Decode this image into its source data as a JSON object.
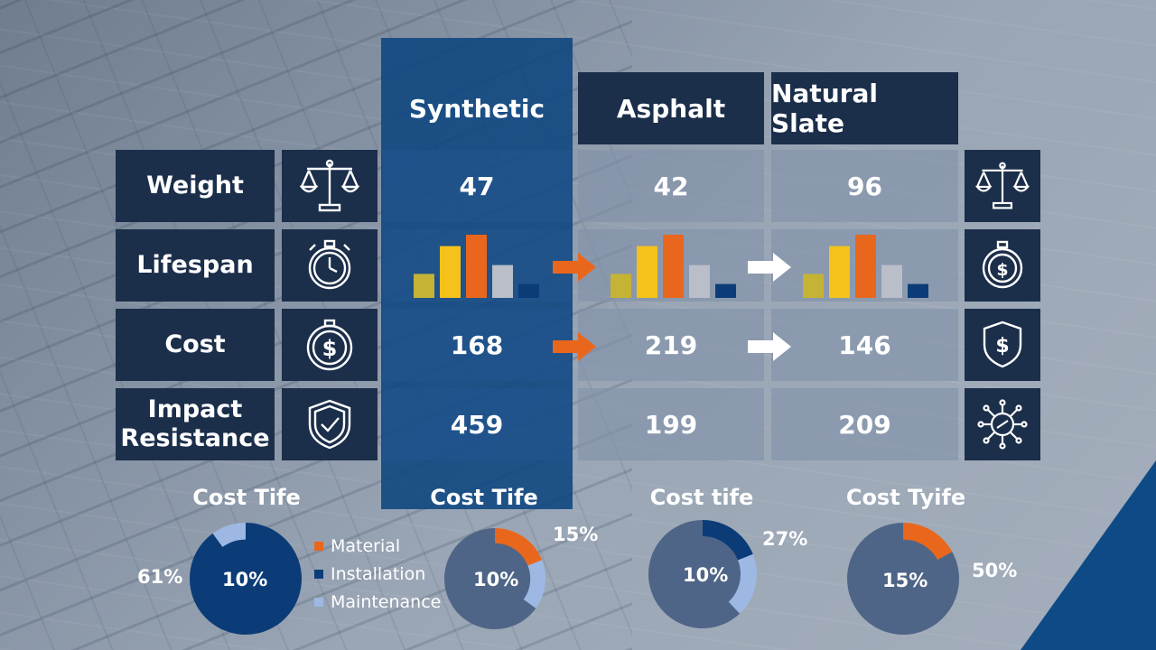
{
  "columns": [
    "Synthetic",
    "Asphalt",
    "Natural Slate"
  ],
  "rows": [
    {
      "label": "Weight",
      "icon": "scale-icon",
      "right_icon": "scale-icon",
      "values": [
        "47",
        "42",
        "96"
      ]
    },
    {
      "label": "Lifespan",
      "icon": "stopwatch-icon",
      "right_icon": "stopwatch-dollar-icon",
      "values": null
    },
    {
      "label": "Cost",
      "icon": "dollar-coin-icon",
      "right_icon": "dollar-shield-icon",
      "values": [
        "168",
        "219",
        "146"
      ]
    },
    {
      "label": "Impact Resistance",
      "label_line1": "Impact",
      "label_line2": "Resistance",
      "icon": "shield-check-icon",
      "right_icon": "virus-icon",
      "values": [
        "459",
        "199",
        "209"
      ]
    }
  ],
  "colors": {
    "header_bg": "#1b2e4a",
    "synthetic_col": "#0d467f",
    "orange": "#e8671d",
    "yellow": "#f4c21b",
    "olive": "#c4b335",
    "grey": "#b9bec8",
    "navy": "#0c3c78",
    "light_blue": "#9db8e2",
    "pie_slate": "#4f6587"
  },
  "legend": [
    {
      "label": "Material",
      "color": "#e8671d"
    },
    {
      "label": "Installation",
      "color": "#0c3c78"
    },
    {
      "label": "Maintenance",
      "color": "#9db8e2"
    }
  ],
  "chart_data": [
    {
      "type": "bar",
      "title": "",
      "groups": [
        "Synthetic",
        "Asphalt",
        "Natural Slate"
      ],
      "bar_colors": [
        "#c4b335",
        "#f4c21b",
        "#e8671d",
        "#b9bec8",
        "#0c3c78"
      ],
      "series": [
        {
          "values": [
            0.38,
            0.82,
            1.0,
            0.52,
            0.22
          ]
        },
        {
          "values": [
            0.38,
            0.82,
            1.0,
            0.52,
            0.22
          ]
        },
        {
          "values": [
            0.38,
            0.82,
            1.0,
            0.52,
            0.22
          ]
        }
      ]
    },
    {
      "type": "pie",
      "title": "Cost Tife",
      "center_label": "10%",
      "outer_label": "61%",
      "slices": [
        {
          "name": "Installation",
          "value": 90,
          "color": "#0c3c78"
        },
        {
          "name": "Maintenance",
          "value": 10,
          "color": "#9db8e2"
        }
      ]
    },
    {
      "type": "pie",
      "title": "Cost Tife",
      "center_label": "10%",
      "outer_label": "15%",
      "slices": [
        {
          "name": "Material",
          "value": 19,
          "color": "#e8671d"
        },
        {
          "name": "Maintenance",
          "value": 16,
          "color": "#9db8e2"
        },
        {
          "name": "Other",
          "value": 65,
          "color": "#4f6587"
        }
      ]
    },
    {
      "type": "pie",
      "title": "Cost tife",
      "center_label": "10%",
      "outer_label": "27%",
      "slices": [
        {
          "name": "Installation",
          "value": 19,
          "color": "#0c3c78"
        },
        {
          "name": "Maintenance",
          "value": 19,
          "color": "#9db8e2"
        },
        {
          "name": "Other",
          "value": 62,
          "color": "#4f6587"
        }
      ]
    },
    {
      "type": "pie",
      "title": "Cost Tyife",
      "center_label": "15%",
      "outer_label": "50%",
      "slices": [
        {
          "name": "Material",
          "value": 17,
          "color": "#e8671d"
        },
        {
          "name": "Other",
          "value": 83,
          "color": "#4f6587"
        }
      ]
    }
  ]
}
